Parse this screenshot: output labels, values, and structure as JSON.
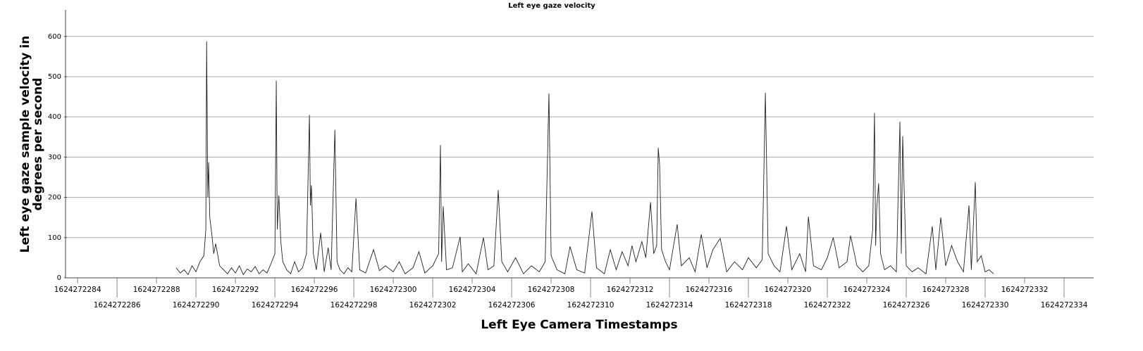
{
  "chart_data": {
    "type": "line",
    "title": "Left eye gaze velocity",
    "x_label": "Left Eye Camera Timestamps",
    "y_label": "Left eye gaze sample velocity in degrees per second",
    "xlim": [
      1624272283.46,
      1624272335.5
    ],
    "ylim": [
      0,
      666
    ],
    "yticks": [
      0,
      100,
      200,
      300,
      400,
      500,
      600
    ],
    "xticks": [
      1624272284,
      1624272286,
      1624272288,
      1624272290,
      1624272292,
      1624272294,
      1624272296,
      1624272298,
      1624272300,
      1624272302,
      1624272304,
      1624272306,
      1624272308,
      1624272310,
      1624272312,
      1624272314,
      1624272316,
      1624272318,
      1624272320,
      1624272322,
      1624272324,
      1624272326,
      1624272328,
      1624272330,
      1624272332,
      1624272334
    ],
    "grid": true,
    "series": [
      {
        "color": "#222222",
        "x": [
          1624272289.0,
          1624272289.2,
          1624272289.4,
          1624272289.6,
          1624272289.8,
          1624272290.0,
          1624272290.2,
          1624272290.4,
          1624272290.5,
          1624272290.54,
          1624272290.6,
          1624272290.64,
          1624272290.7,
          1624272290.8,
          1624272290.9,
          1624272291.0,
          1624272291.2,
          1624272291.4,
          1624272291.6,
          1624272291.8,
          1624272292.0,
          1624272292.2,
          1624272292.4,
          1624272292.6,
          1624272292.8,
          1624272293.0,
          1624272293.2,
          1624272293.4,
          1624272293.6,
          1624272293.8,
          1624272294.0,
          1624272294.07,
          1624272294.12,
          1624272294.2,
          1624272294.3,
          1624272294.4,
          1624272294.6,
          1624272294.8,
          1624272295.0,
          1624272295.2,
          1624272295.4,
          1624272295.6,
          1624272295.75,
          1624272295.8,
          1624272295.85,
          1624272295.95,
          1624272296.1,
          1624272296.32,
          1624272296.5,
          1624272296.7,
          1624272296.85,
          1624272297.04,
          1624272297.15,
          1624272297.3,
          1624272297.5,
          1624272297.7,
          1624272297.9,
          1624272298.11,
          1624272298.3,
          1624272298.6,
          1624272299.0,
          1624272299.3,
          1624272299.6,
          1624272300.0,
          1624272300.3,
          1624272300.6,
          1624272301.0,
          1624272301.3,
          1624272301.6,
          1624272302.0,
          1624272302.3,
          1624272302.39,
          1624272302.45,
          1624272302.53,
          1624272302.7,
          1624272303.0,
          1624272303.39,
          1624272303.5,
          1624272303.8,
          1624272304.2,
          1624272304.57,
          1624272304.8,
          1624272305.1,
          1624272305.32,
          1624272305.5,
          1624272305.8,
          1624272306.2,
          1624272306.6,
          1624272307.0,
          1624272307.4,
          1624272307.7,
          1624272307.89,
          1624272308.0,
          1624272308.3,
          1624272308.7,
          1624272308.96,
          1624272309.3,
          1624272309.7,
          1624272310.07,
          1624272310.3,
          1624272310.7,
          1624272311.0,
          1624272311.3,
          1624272311.6,
          1624272311.9,
          1624272312.1,
          1624272312.3,
          1624272312.6,
          1624272312.8,
          1624272313.04,
          1624272313.2,
          1624272313.35,
          1624272313.43,
          1624272313.5,
          1624272313.6,
          1624272313.8,
          1624272314.0,
          1624272314.39,
          1624272314.6,
          1624272315.0,
          1624272315.3,
          1624272315.61,
          1624272315.9,
          1624272316.2,
          1624272316.57,
          1624272316.9,
          1624272317.3,
          1624272317.7,
          1624272318.0,
          1624272318.4,
          1624272318.7,
          1624272318.86,
          1624272319.0,
          1624272319.3,
          1624272319.6,
          1624272319.93,
          1624272320.2,
          1624272320.6,
          1624272320.9,
          1624272321.04,
          1624272321.3,
          1624272321.7,
          1624272322.0,
          1624272322.3,
          1624272322.6,
          1624272323.0,
          1624272323.18,
          1624272323.5,
          1624272323.8,
          1624272324.1,
          1624272324.3,
          1624272324.39,
          1624272324.45,
          1624272324.5,
          1624272324.6,
          1624272324.7,
          1624272324.9,
          1624272325.2,
          1624272325.5,
          1624272325.68,
          1624272325.75,
          1624272325.82,
          1624272326.0,
          1624272326.3,
          1624272326.6,
          1624272327.0,
          1624272327.32,
          1624272327.5,
          1624272327.75,
          1624272328.0,
          1624272328.3,
          1624272328.6,
          1624272328.9,
          1624272329.18,
          1624272329.3,
          1624272329.5,
          1624272329.6,
          1624272329.8,
          1624272330.0,
          1624272330.2,
          1624272330.43
        ],
        "values": [
          25,
          12,
          20,
          8,
          30,
          15,
          40,
          55,
          120,
          588,
          200,
          287,
          150,
          110,
          60,
          85,
          30,
          20,
          10,
          25,
          12,
          30,
          8,
          22,
          15,
          28,
          10,
          20,
          12,
          35,
          60,
          490,
          120,
          205,
          90,
          40,
          20,
          10,
          40,
          15,
          25,
          60,
          405,
          180,
          230,
          60,
          20,
          112,
          15,
          75,
          20,
          368,
          40,
          20,
          10,
          25,
          15,
          198,
          20,
          12,
          70,
          18,
          30,
          15,
          40,
          10,
          25,
          65,
          12,
          30,
          60,
          330,
          40,
          178,
          20,
          25,
          102,
          15,
          35,
          10,
          100,
          20,
          30,
          218,
          40,
          15,
          50,
          10,
          30,
          15,
          40,
          458,
          55,
          20,
          10,
          78,
          20,
          12,
          165,
          25,
          10,
          70,
          20,
          65,
          30,
          80,
          40,
          90,
          50,
          188,
          60,
          80,
          323,
          280,
          70,
          40,
          20,
          133,
          30,
          50,
          15,
          108,
          25,
          70,
          98,
          15,
          40,
          20,
          50,
          25,
          45,
          460,
          60,
          30,
          15,
          128,
          20,
          60,
          15,
          152,
          30,
          20,
          50,
          100,
          25,
          40,
          105,
          30,
          15,
          30,
          120,
          410,
          80,
          170,
          235,
          60,
          20,
          30,
          15,
          388,
          60,
          352,
          30,
          15,
          25,
          10,
          128,
          20,
          150,
          30,
          80,
          40,
          15,
          180,
          20,
          238,
          40,
          55,
          15,
          20,
          10
        ]
      }
    ]
  }
}
